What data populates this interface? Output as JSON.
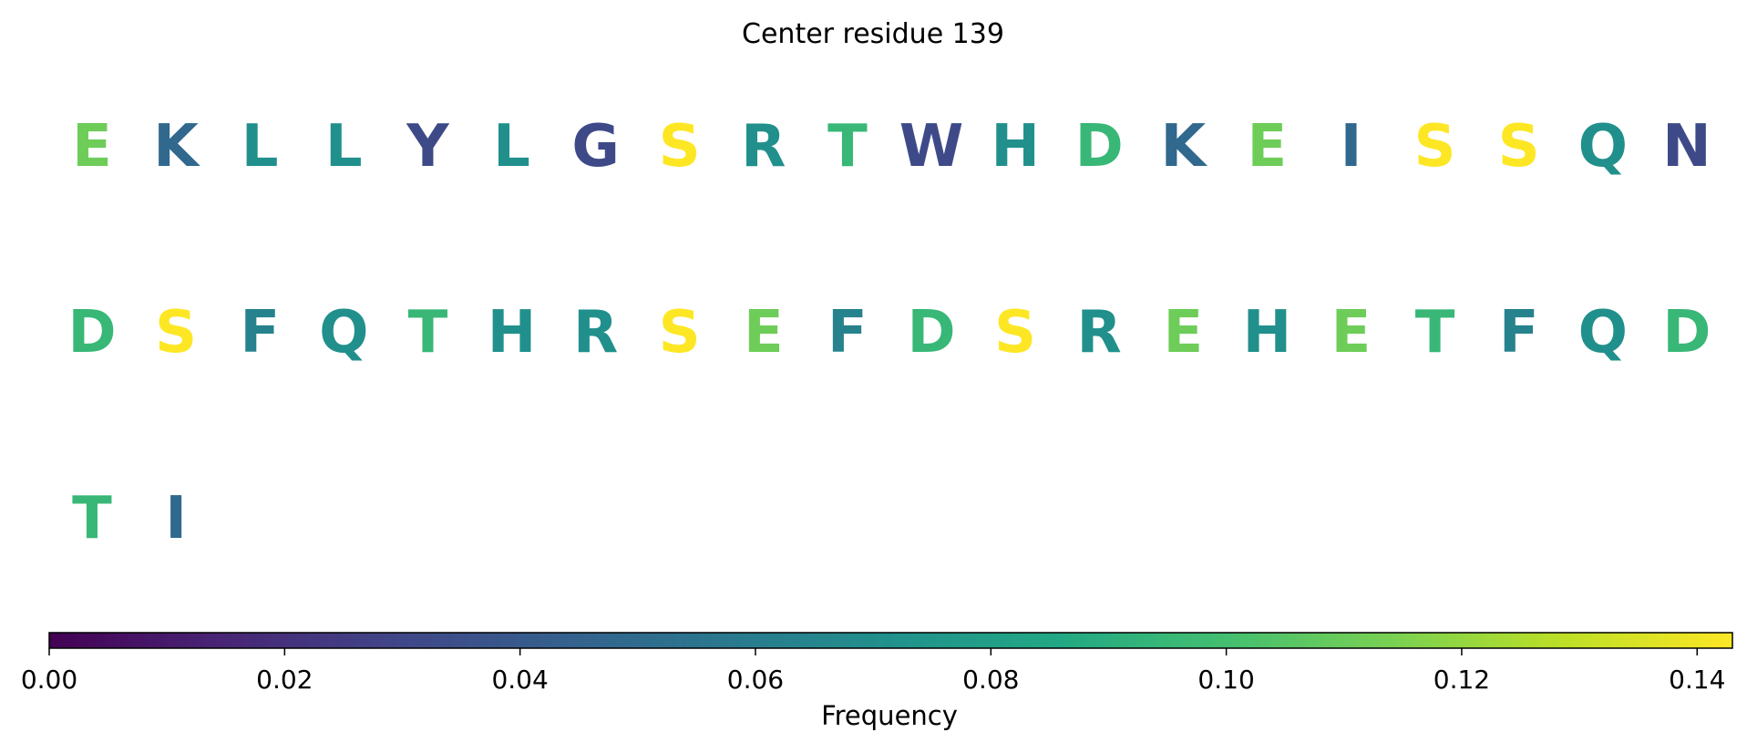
{
  "chart_data": {
    "type": "heatmap",
    "title": "Center residue 139",
    "colorbar": {
      "label": "Frequency",
      "range": [
        0.0,
        0.143
      ],
      "ticks": [
        "0.00",
        "0.02",
        "0.04",
        "0.06",
        "0.08",
        "0.10",
        "0.12",
        "0.14"
      ],
      "tick_values": [
        0.0,
        0.02,
        0.04,
        0.06,
        0.08,
        0.1,
        0.12,
        0.14
      ],
      "colormap": "viridis"
    },
    "columns_per_row": 20,
    "residues": [
      {
        "letter": "E",
        "value": 0.111
      },
      {
        "letter": "K",
        "value": 0.048
      },
      {
        "letter": "L",
        "value": 0.071
      },
      {
        "letter": "L",
        "value": 0.071
      },
      {
        "letter": "Y",
        "value": 0.032
      },
      {
        "letter": "L",
        "value": 0.071
      },
      {
        "letter": "G",
        "value": 0.032
      },
      {
        "letter": "S",
        "value": 0.143
      },
      {
        "letter": "R",
        "value": 0.071
      },
      {
        "letter": "T",
        "value": 0.095
      },
      {
        "letter": "W",
        "value": 0.032
      },
      {
        "letter": "H",
        "value": 0.071
      },
      {
        "letter": "D",
        "value": 0.095
      },
      {
        "letter": "K",
        "value": 0.048
      },
      {
        "letter": "E",
        "value": 0.111
      },
      {
        "letter": "I",
        "value": 0.048
      },
      {
        "letter": "S",
        "value": 0.143
      },
      {
        "letter": "S",
        "value": 0.143
      },
      {
        "letter": "Q",
        "value": 0.071
      },
      {
        "letter": "N",
        "value": 0.032
      },
      {
        "letter": "D",
        "value": 0.095
      },
      {
        "letter": "S",
        "value": 0.143
      },
      {
        "letter": "F",
        "value": 0.063
      },
      {
        "letter": "Q",
        "value": 0.071
      },
      {
        "letter": "T",
        "value": 0.095
      },
      {
        "letter": "H",
        "value": 0.071
      },
      {
        "letter": "R",
        "value": 0.071
      },
      {
        "letter": "S",
        "value": 0.143
      },
      {
        "letter": "E",
        "value": 0.111
      },
      {
        "letter": "F",
        "value": 0.063
      },
      {
        "letter": "D",
        "value": 0.095
      },
      {
        "letter": "S",
        "value": 0.143
      },
      {
        "letter": "R",
        "value": 0.071
      },
      {
        "letter": "E",
        "value": 0.111
      },
      {
        "letter": "H",
        "value": 0.071
      },
      {
        "letter": "E",
        "value": 0.111
      },
      {
        "letter": "T",
        "value": 0.095
      },
      {
        "letter": "F",
        "value": 0.063
      },
      {
        "letter": "Q",
        "value": 0.071
      },
      {
        "letter": "D",
        "value": 0.095
      },
      {
        "letter": "T",
        "value": 0.095
      },
      {
        "letter": "I",
        "value": 0.048
      }
    ]
  }
}
